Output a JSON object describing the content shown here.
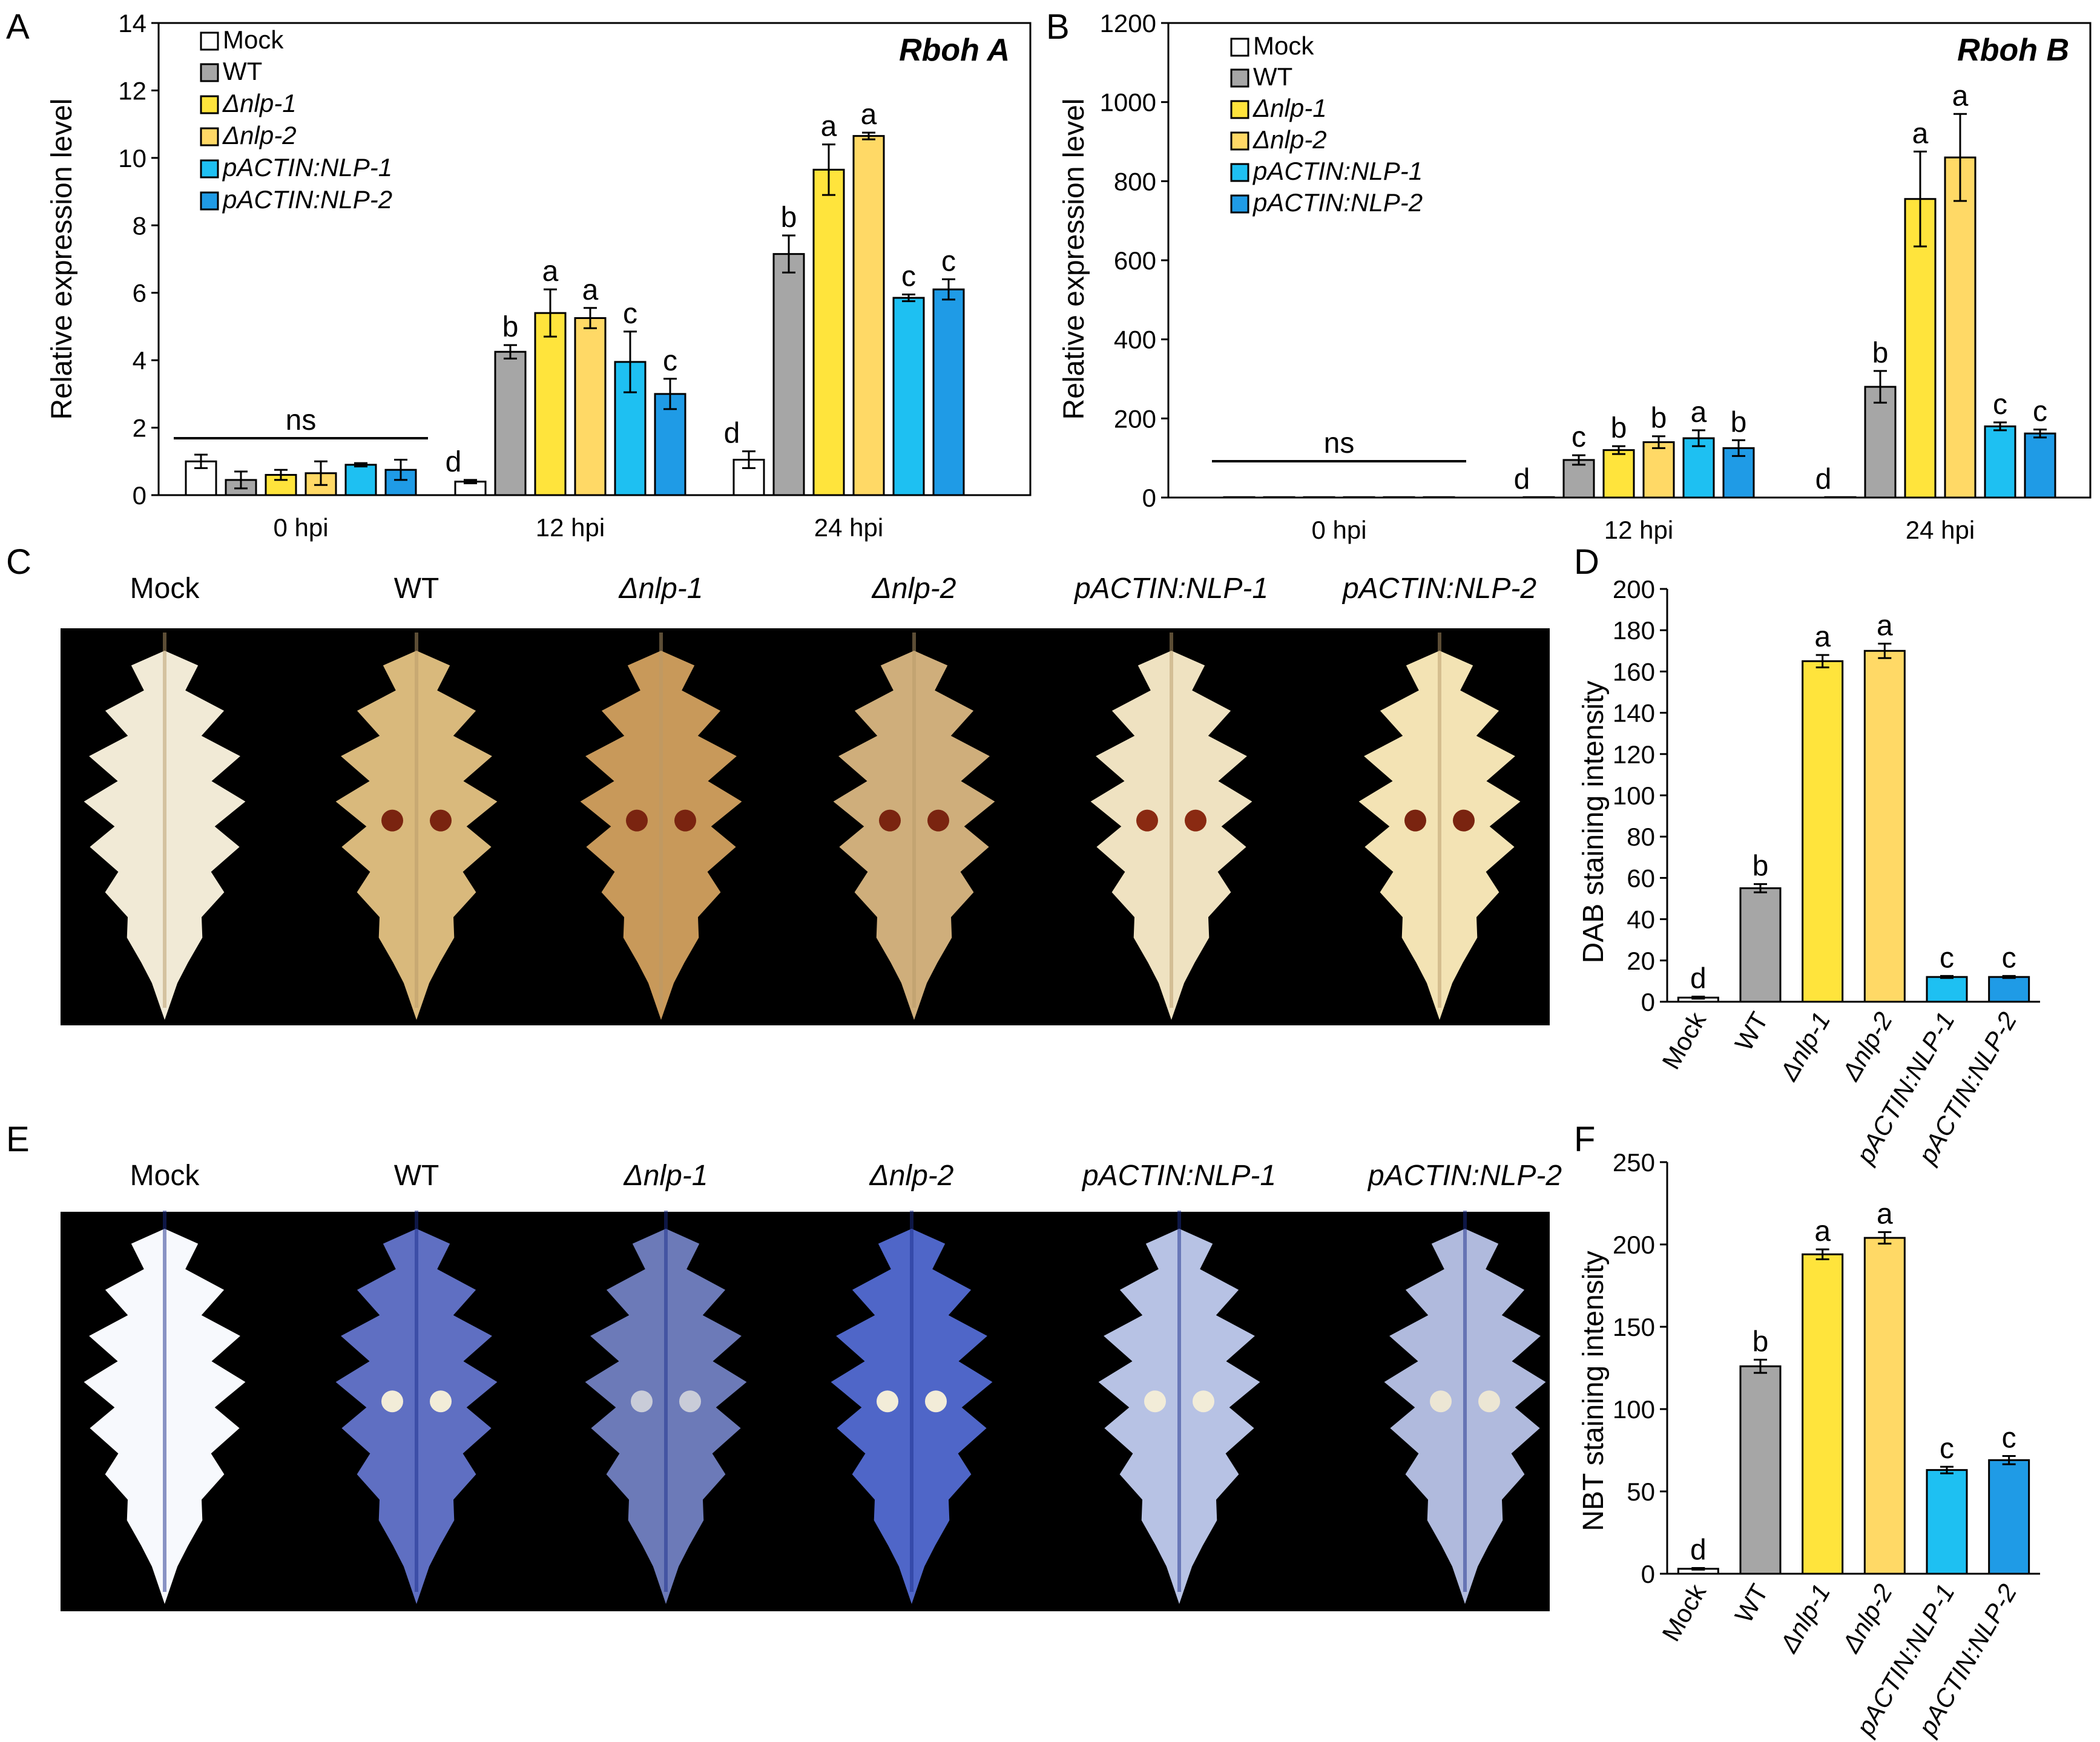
{
  "panel_letters": [
    "A",
    "B",
    "C",
    "D",
    "E",
    "F"
  ],
  "legend": {
    "mock": "Mock",
    "wt": "WT",
    "nlp1": "Δnlp-1",
    "nlp2": "Δnlp-2",
    "pact1": "pACTIN:NLP-1",
    "pact2": "pACTIN:NLP-2"
  },
  "colors": {
    "Mock": "#ffffff",
    "WT": "#a6a6a6",
    "nlp1": "#ffe43c",
    "nlp2": "#ffd966",
    "pact1": "#1ec0f2",
    "pact2": "#1f9be6",
    "photo_bg": "#000000"
  },
  "photos": {
    "C": {
      "labels": [
        "Mock",
        "WT",
        "Δnlp-1",
        "Δnlp-2",
        "pACTIN:NLP-1",
        "pACTIN:NLP-2"
      ],
      "stain": "DAB",
      "leaf_colors": [
        "#f1ead6",
        "#d9b97c",
        "#c8995a",
        "#cfae7b",
        "#efe2c1",
        "#f3e3b4"
      ]
    },
    "E": {
      "labels": [
        "Mock",
        "WT",
        "Δnlp-1",
        "Δnlp-2",
        "pACTIN:NLP-1",
        "pACTIN:NLP-2"
      ],
      "stain": "NBT",
      "leaf_colors": [
        "#f7f9fd",
        "#5f6fc2",
        "#6c7ab8",
        "#4f66c8",
        "#b7c2e4",
        "#b0badd"
      ]
    }
  },
  "chart_data": [
    {
      "id": "A",
      "type": "bar",
      "title": "Rboh A",
      "ylabel": "Relative expression level",
      "xlabel": "",
      "ylim": [
        0,
        14
      ],
      "yticks": [
        0,
        2,
        4,
        6,
        8,
        10,
        12,
        14
      ],
      "legend_placement": "top-left",
      "categories": [
        "0 hpi",
        "12 hpi",
        "24 hpi"
      ],
      "series": [
        {
          "name": "Mock",
          "values": [
            1.0,
            0.4,
            1.05
          ],
          "errors": [
            0.2,
            0.05,
            0.25
          ]
        },
        {
          "name": "WT",
          "values": [
            0.45,
            4.25,
            7.15
          ],
          "errors": [
            0.25,
            0.2,
            0.55
          ]
        },
        {
          "name": "Δnlp-1",
          "values": [
            0.6,
            5.4,
            9.65
          ],
          "errors": [
            0.15,
            0.7,
            0.75
          ]
        },
        {
          "name": "Δnlp-2",
          "values": [
            0.65,
            5.25,
            10.65
          ],
          "errors": [
            0.35,
            0.3,
            0.1
          ]
        },
        {
          "name": "pACTIN:NLP-1",
          "values": [
            0.9,
            3.95,
            5.85
          ],
          "errors": [
            0.05,
            0.9,
            0.1
          ]
        },
        {
          "name": "pACTIN:NLP-2",
          "values": [
            0.75,
            3.0,
            6.1
          ],
          "errors": [
            0.3,
            0.45,
            0.3
          ]
        }
      ],
      "letters": [
        [
          "",
          "",
          ""
        ],
        [
          "",
          "b",
          "b"
        ],
        [
          "",
          "a",
          "a"
        ],
        [
          "",
          "a",
          "a"
        ],
        [
          "",
          "c",
          "c"
        ],
        [
          "",
          "c",
          "c"
        ]
      ],
      "mock_letters": [
        "",
        "d",
        "d"
      ],
      "ns_label": "ns"
    },
    {
      "id": "B",
      "type": "bar",
      "title": "Rboh B",
      "ylabel": "Relative expression level",
      "xlabel": "",
      "ylim": [
        0,
        1200
      ],
      "yticks": [
        0,
        200,
        400,
        600,
        800,
        1000,
        1200
      ],
      "legend_placement": "top-left",
      "categories": [
        "0 hpi",
        "12 hpi",
        "24 hpi"
      ],
      "series": [
        {
          "name": "Mock",
          "values": [
            1,
            1,
            1
          ],
          "errors": [
            0,
            0,
            0
          ]
        },
        {
          "name": "WT",
          "values": [
            1,
            95,
            280
          ],
          "errors": [
            0,
            12,
            40
          ]
        },
        {
          "name": "Δnlp-1",
          "values": [
            1,
            120,
            755
          ],
          "errors": [
            0,
            10,
            120
          ]
        },
        {
          "name": "Δnlp-2",
          "values": [
            1,
            140,
            860
          ],
          "errors": [
            0,
            15,
            110
          ]
        },
        {
          "name": "pACTIN:NLP-1",
          "values": [
            1,
            150,
            180
          ],
          "errors": [
            0,
            20,
            10
          ]
        },
        {
          "name": "pACTIN:NLP-2",
          "values": [
            1,
            125,
            162
          ],
          "errors": [
            0,
            20,
            10
          ]
        }
      ],
      "letters": [
        [
          "",
          "",
          ""
        ],
        [
          "",
          "c",
          "b"
        ],
        [
          "",
          "b",
          "a"
        ],
        [
          "",
          "b",
          "a"
        ],
        [
          "",
          "a",
          "c"
        ],
        [
          "",
          "b",
          "c"
        ]
      ],
      "mock_letters": [
        "",
        "d",
        "d"
      ],
      "ns_label": "ns"
    },
    {
      "id": "D",
      "type": "bar",
      "title": "",
      "ylabel": "DAB staining intensity",
      "xlabel": "",
      "ylim": [
        0,
        200
      ],
      "yticks": [
        0,
        20,
        40,
        60,
        80,
        100,
        120,
        140,
        160,
        180,
        200
      ],
      "categories": [
        "Mock",
        "WT",
        "Δnlp-1",
        "Δnlp-2",
        "pACTIN:NLP-1",
        "pACTIN:NLP-2"
      ],
      "values": [
        2,
        55,
        165,
        170,
        12,
        12
      ],
      "errors": [
        0.5,
        2,
        3,
        3.5,
        0.5,
        0.5
      ],
      "letters": [
        "d",
        "b",
        "a",
        "a",
        "c",
        "c"
      ]
    },
    {
      "id": "F",
      "type": "bar",
      "title": "",
      "ylabel": "NBT staining intensity",
      "xlabel": "",
      "ylim": [
        0,
        250
      ],
      "yticks": [
        0,
        50,
        100,
        150,
        200,
        250
      ],
      "categories": [
        "Mock",
        "WT",
        "Δnlp-1",
        "Δnlp-2",
        "pACTIN:NLP-1",
        "pACTIN:NLP-2"
      ],
      "values": [
        3,
        126,
        194,
        204,
        63,
        69
      ],
      "errors": [
        0.5,
        4,
        3,
        3.5,
        2,
        2.5
      ],
      "letters": [
        "d",
        "b",
        "a",
        "a",
        "c",
        "c"
      ]
    }
  ]
}
